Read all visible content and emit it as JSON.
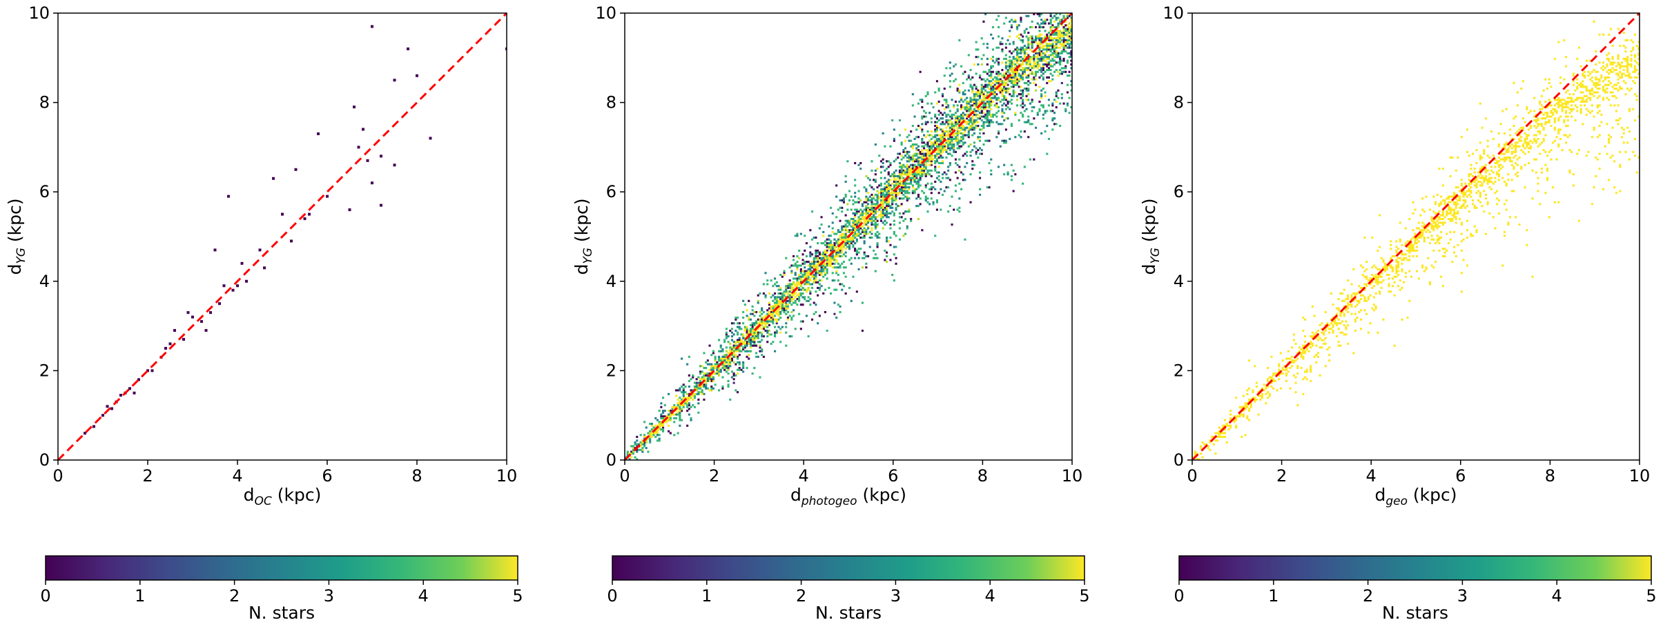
{
  "chart_data": [
    {
      "type": "heatmap",
      "title": "",
      "xlabel": "d_OC (kpc)",
      "xlabel_main": "d",
      "xlabel_sub": "OC",
      "xlabel_unit": " (kpc)",
      "ylabel_main": "d",
      "ylabel_sub": "YG",
      "ylabel_unit": " (kpc)",
      "xlim": [
        0,
        10
      ],
      "ylim": [
        0,
        10
      ],
      "xticks": [
        "0",
        "2",
        "4",
        "6",
        "8",
        "10"
      ],
      "yticks": [
        "0",
        "2",
        "4",
        "6",
        "8",
        "10"
      ],
      "reference_line": {
        "style": "dashed",
        "color": "#ff0000",
        "slope": 1,
        "intercept": 0
      },
      "points": [
        [
          0.6,
          0.6
        ],
        [
          0.8,
          0.75
        ],
        [
          1.0,
          1.0
        ],
        [
          1.2,
          1.15
        ],
        [
          1.3,
          1.3
        ],
        [
          1.4,
          1.45
        ],
        [
          1.5,
          1.5
        ],
        [
          1.6,
          1.6
        ],
        [
          1.8,
          1.8
        ],
        [
          2.0,
          2.0
        ],
        [
          2.1,
          2.0
        ],
        [
          2.3,
          2.3
        ],
        [
          2.5,
          2.6
        ],
        [
          2.6,
          2.9
        ],
        [
          2.8,
          2.7
        ],
        [
          3.0,
          3.2
        ],
        [
          3.2,
          3.1
        ],
        [
          3.4,
          3.3
        ],
        [
          3.6,
          3.5
        ],
        [
          3.7,
          3.9
        ],
        [
          3.8,
          5.9
        ],
        [
          3.5,
          4.7
        ],
        [
          4.0,
          3.9
        ],
        [
          4.1,
          4.4
        ],
        [
          4.2,
          4.0
        ],
        [
          4.5,
          4.7
        ],
        [
          4.8,
          6.3
        ],
        [
          5.0,
          5.5
        ],
        [
          5.2,
          4.9
        ],
        [
          5.3,
          6.5
        ],
        [
          5.5,
          5.4
        ],
        [
          5.6,
          5.5
        ],
        [
          5.8,
          7.3
        ],
        [
          6.0,
          5.9
        ],
        [
          6.6,
          7.9
        ],
        [
          6.8,
          7.4
        ],
        [
          6.9,
          6.7
        ],
        [
          7.0,
          9.7
        ],
        [
          7.0,
          6.2
        ],
        [
          7.2,
          5.7
        ],
        [
          7.2,
          6.8
        ],
        [
          7.5,
          6.6
        ],
        [
          7.5,
          8.5
        ],
        [
          7.8,
          9.2
        ],
        [
          8.0,
          8.6
        ],
        [
          8.3,
          7.2
        ],
        [
          10.0,
          9.2
        ],
        [
          1.1,
          1.2
        ],
        [
          1.7,
          1.5
        ],
        [
          2.4,
          2.5
        ],
        [
          2.9,
          3.3
        ],
        [
          3.3,
          2.9
        ],
        [
          3.9,
          3.8
        ],
        [
          4.6,
          4.3
        ],
        [
          6.5,
          5.6
        ],
        [
          6.7,
          7.0
        ]
      ]
    },
    {
      "type": "heatmap",
      "title": "",
      "xlabel": "d_photogeo (kpc)",
      "xlabel_main": "d",
      "xlabel_sub": "photogeo",
      "xlabel_unit": " (kpc)",
      "ylabel_main": "d",
      "ylabel_sub": "YG",
      "ylabel_unit": " (kpc)",
      "xlim": [
        0,
        10
      ],
      "ylim": [
        0,
        10
      ],
      "xticks": [
        "0",
        "2",
        "4",
        "6",
        "8",
        "10"
      ],
      "yticks": [
        "0",
        "2",
        "4",
        "6",
        "8",
        "10"
      ],
      "reference_line": {
        "style": "dashed",
        "color": "#ff0000",
        "slope": 1,
        "intercept": 0
      },
      "density_trend": {
        "x": [
          0,
          2,
          4,
          6,
          8,
          10
        ],
        "y": [
          0,
          2,
          4,
          6,
          8,
          9.7
        ],
        "scatter_grows_with_x": true
      }
    },
    {
      "type": "heatmap",
      "title": "",
      "xlabel": "d_geo (kpc)",
      "xlabel_main": "d",
      "xlabel_sub": "geo",
      "xlabel_unit": " (kpc)",
      "ylabel_main": "d",
      "ylabel_sub": "YG",
      "ylabel_unit": " (kpc)",
      "xlim": [
        0,
        10
      ],
      "ylim": [
        0,
        10
      ],
      "xticks": [
        "0",
        "2",
        "4",
        "6",
        "8",
        "10"
      ],
      "yticks": [
        "0",
        "2",
        "4",
        "6",
        "8",
        "10"
      ],
      "reference_line": {
        "style": "dashed",
        "color": "#ff0000",
        "slope": 1,
        "intercept": 0
      },
      "density_trend": {
        "x": [
          0,
          2,
          4,
          6,
          8,
          10
        ],
        "y": [
          0,
          2,
          3.95,
          5.85,
          7.7,
          9.0
        ],
        "scatter_grows_with_x": true
      }
    }
  ],
  "colorbar": {
    "label": "N. stars",
    "ticks": [
      "0",
      "1",
      "2",
      "3",
      "4",
      "5"
    ],
    "range": [
      0,
      5
    ],
    "colormap": "viridis",
    "colors": [
      "#440154",
      "#3b528b",
      "#21918c",
      "#5ec962",
      "#fde725"
    ]
  }
}
